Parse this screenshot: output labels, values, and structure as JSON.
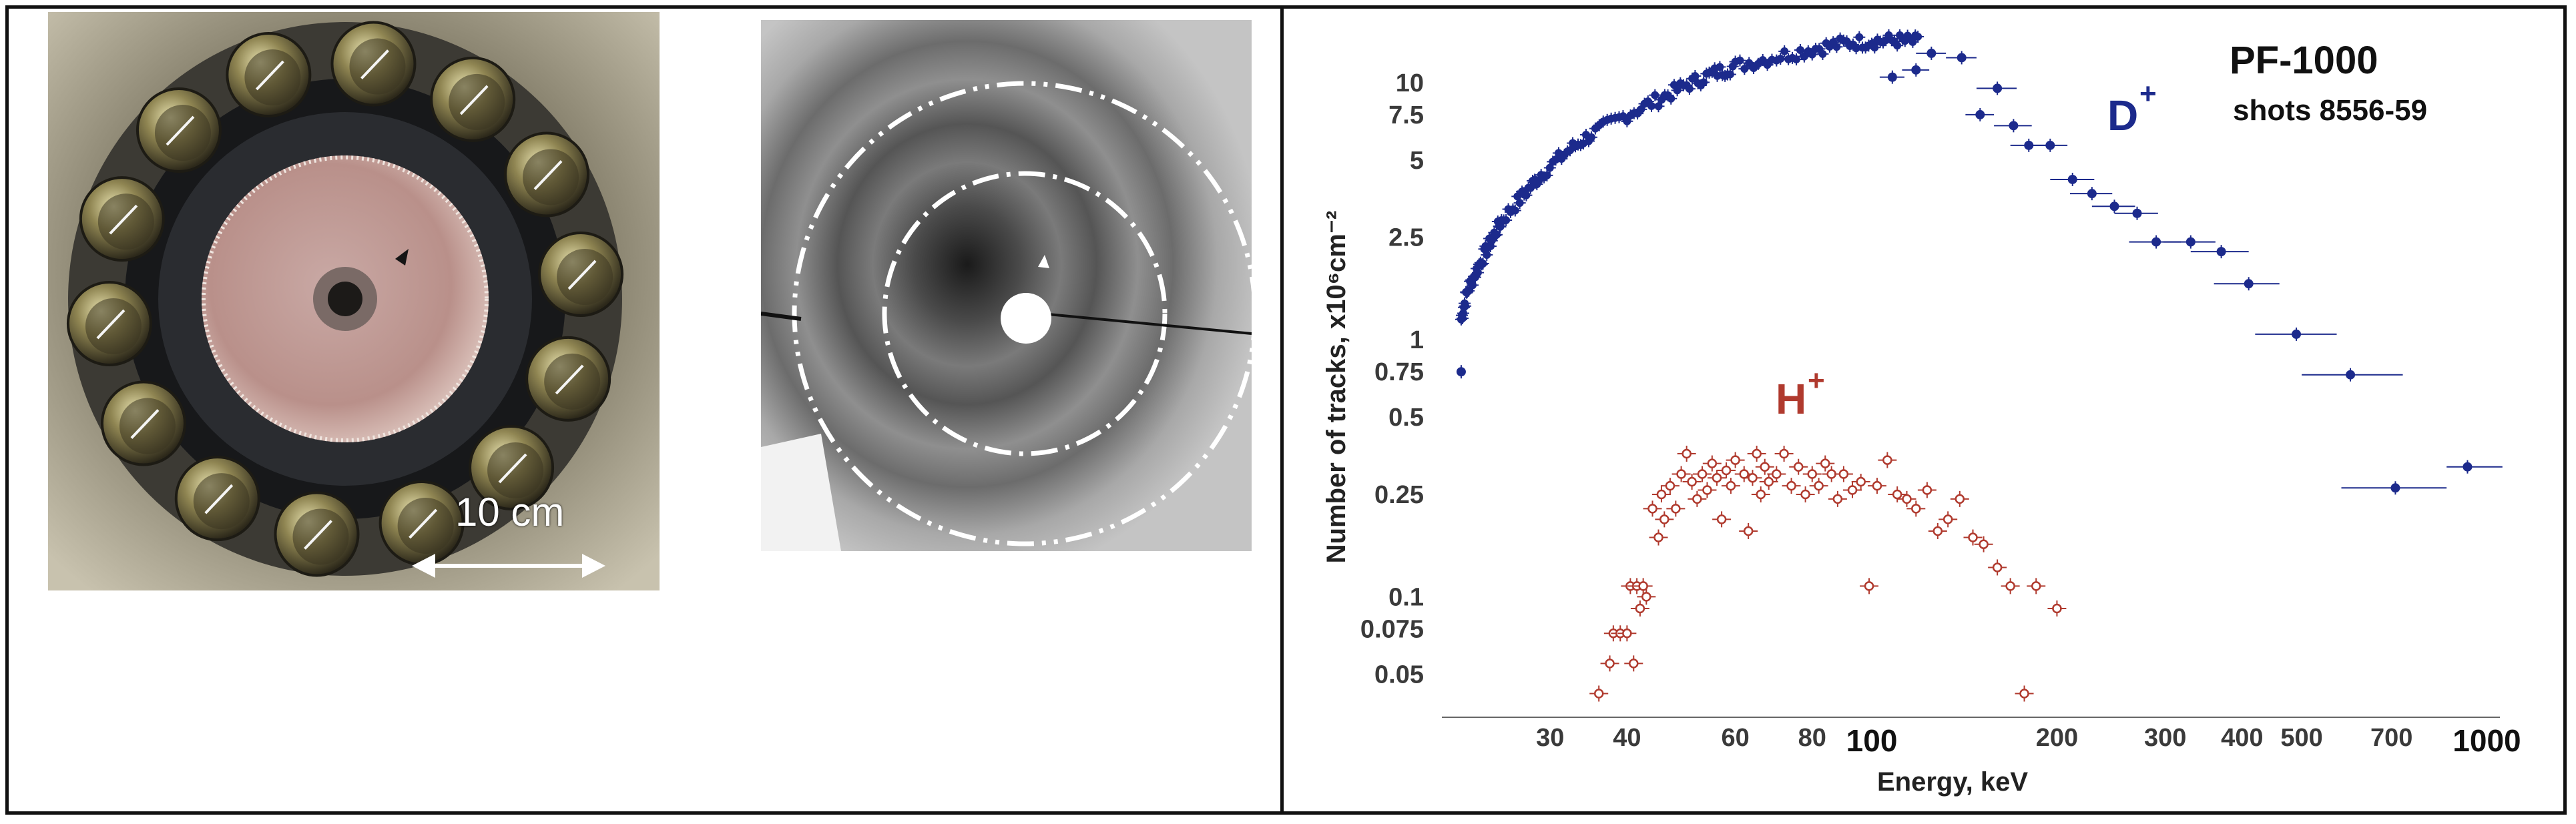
{
  "figure": {
    "left_photo": {
      "scale_label": "10 cm"
    },
    "middle_photo": {}
  },
  "chart_data": {
    "type": "scatter",
    "xscale": "log",
    "yscale": "log",
    "xlim": [
      20,
      1050
    ],
    "ylim": [
      0.035,
      17
    ],
    "xlabel": "Energy, keV",
    "ylabel": "Number of tracks, x10⁶cm⁻²",
    "x_ticks": [
      {
        "v": 30,
        "t": "30"
      },
      {
        "v": 40,
        "t": "40"
      },
      {
        "v": 60,
        "t": "60"
      },
      {
        "v": 80,
        "t": "80"
      },
      {
        "v": 100,
        "t": "100"
      },
      {
        "v": 200,
        "t": "200"
      },
      {
        "v": 300,
        "t": "300"
      },
      {
        "v": 400,
        "t": "400"
      },
      {
        "v": 500,
        "t": "500"
      },
      {
        "v": 700,
        "t": "700"
      },
      {
        "v": 1000,
        "t": "1000"
      }
    ],
    "y_ticks": [
      {
        "v": 10,
        "t": "10"
      },
      {
        "v": 7.5,
        "t": "7.5"
      },
      {
        "v": 5,
        "t": "5"
      },
      {
        "v": 2.5,
        "t": "2.5"
      },
      {
        "v": 1,
        "t": "1"
      },
      {
        "v": 0.75,
        "t": "0.75"
      },
      {
        "v": 0.5,
        "t": "0.5"
      },
      {
        "v": 0.25,
        "t": "0.25"
      },
      {
        "v": 0.1,
        "t": "0.1"
      },
      {
        "v": 0.075,
        "t": "0.075"
      },
      {
        "v": 0.05,
        "t": "0.05"
      }
    ],
    "annotations": {
      "title": "PF-1000",
      "subtitle": "shots 8556-59",
      "label_d": "D",
      "label_h": "H",
      "superscript": "+"
    },
    "series": [
      {
        "name": "D+",
        "color": "#1c2a8c",
        "marker": "filled",
        "dense_curve": [
          [
            21.5,
            1.2
          ],
          [
            22,
            1.55
          ],
          [
            23,
            1.95
          ],
          [
            24,
            2.4
          ],
          [
            25,
            2.9
          ],
          [
            27,
            3.6
          ],
          [
            29,
            4.4
          ],
          [
            32,
            5.4
          ],
          [
            35,
            6.3
          ],
          [
            40,
            7.5
          ],
          [
            45,
            8.6
          ],
          [
            50,
            9.8
          ],
          [
            55,
            10.8
          ],
          [
            60,
            11.6
          ],
          [
            70,
            12.6
          ],
          [
            80,
            13.5
          ],
          [
            90,
            14.2
          ],
          [
            100,
            14.5
          ],
          [
            110,
            14.6
          ],
          [
            120,
            14.4
          ]
        ],
        "points": [
          {
            "x": 21.5,
            "y": 0.75,
            "xlo": 21.3,
            "xhi": 21.7
          },
          {
            "x": 108,
            "y": 10.5,
            "xlo": 103,
            "xhi": 113
          },
          {
            "x": 118,
            "y": 11.2,
            "xlo": 112,
            "xhi": 124
          },
          {
            "x": 125,
            "y": 13.0,
            "xlo": 118,
            "xhi": 132
          },
          {
            "x": 140,
            "y": 12.5,
            "xlo": 132,
            "xhi": 148
          },
          {
            "x": 150,
            "y": 7.5,
            "xlo": 142,
            "xhi": 158
          },
          {
            "x": 160,
            "y": 9.5,
            "xlo": 148,
            "xhi": 172
          },
          {
            "x": 170,
            "y": 6.8,
            "xlo": 158,
            "xhi": 182
          },
          {
            "x": 180,
            "y": 5.7,
            "xlo": 168,
            "xhi": 192
          },
          {
            "x": 195,
            "y": 5.7,
            "xlo": 182,
            "xhi": 208
          },
          {
            "x": 212,
            "y": 4.2,
            "xlo": 195,
            "xhi": 230
          },
          {
            "x": 228,
            "y": 3.7,
            "xlo": 210,
            "xhi": 246
          },
          {
            "x": 248,
            "y": 3.3,
            "xlo": 228,
            "xhi": 268
          },
          {
            "x": 270,
            "y": 3.1,
            "xlo": 248,
            "xhi": 292
          },
          {
            "x": 290,
            "y": 2.4,
            "xlo": 262,
            "xhi": 318
          },
          {
            "x": 330,
            "y": 2.4,
            "xlo": 298,
            "xhi": 362
          },
          {
            "x": 370,
            "y": 2.2,
            "xlo": 330,
            "xhi": 410
          },
          {
            "x": 410,
            "y": 1.65,
            "xlo": 360,
            "xhi": 460
          },
          {
            "x": 490,
            "y": 1.05,
            "xlo": 420,
            "xhi": 570
          },
          {
            "x": 600,
            "y": 0.73,
            "xlo": 500,
            "xhi": 730
          },
          {
            "x": 710,
            "y": 0.265,
            "xlo": 580,
            "xhi": 860
          },
          {
            "x": 930,
            "y": 0.32,
            "xlo": 860,
            "xhi": 1060
          }
        ]
      },
      {
        "name": "H+",
        "color": "#b03a2e",
        "marker": "open",
        "points": [
          {
            "x": 36,
            "y": 0.042
          },
          {
            "x": 37.5,
            "y": 0.055
          },
          {
            "x": 38,
            "y": 0.072
          },
          {
            "x": 39,
            "y": 0.072
          },
          {
            "x": 40,
            "y": 0.072
          },
          {
            "x": 40.5,
            "y": 0.11
          },
          {
            "x": 41,
            "y": 0.055
          },
          {
            "x": 41.5,
            "y": 0.11
          },
          {
            "x": 42,
            "y": 0.09
          },
          {
            "x": 42.5,
            "y": 0.11
          },
          {
            "x": 43,
            "y": 0.1
          },
          {
            "x": 44,
            "y": 0.22
          },
          {
            "x": 45,
            "y": 0.17
          },
          {
            "x": 45.5,
            "y": 0.25
          },
          {
            "x": 46,
            "y": 0.2
          },
          {
            "x": 47,
            "y": 0.27
          },
          {
            "x": 48,
            "y": 0.22
          },
          {
            "x": 49,
            "y": 0.3
          },
          {
            "x": 50,
            "y": 0.36
          },
          {
            "x": 51,
            "y": 0.28
          },
          {
            "x": 52,
            "y": 0.24
          },
          {
            "x": 53,
            "y": 0.3
          },
          {
            "x": 54,
            "y": 0.26
          },
          {
            "x": 55,
            "y": 0.33
          },
          {
            "x": 56,
            "y": 0.29
          },
          {
            "x": 57,
            "y": 0.2
          },
          {
            "x": 58,
            "y": 0.31
          },
          {
            "x": 59,
            "y": 0.27
          },
          {
            "x": 60,
            "y": 0.34
          },
          {
            "x": 62,
            "y": 0.3
          },
          {
            "x": 63,
            "y": 0.18
          },
          {
            "x": 64,
            "y": 0.29
          },
          {
            "x": 65,
            "y": 0.36
          },
          {
            "x": 66,
            "y": 0.25
          },
          {
            "x": 67,
            "y": 0.32
          },
          {
            "x": 68,
            "y": 0.28
          },
          {
            "x": 70,
            "y": 0.3
          },
          {
            "x": 72,
            "y": 0.36
          },
          {
            "x": 74,
            "y": 0.27
          },
          {
            "x": 76,
            "y": 0.32
          },
          {
            "x": 78,
            "y": 0.25
          },
          {
            "x": 80,
            "y": 0.3
          },
          {
            "x": 82,
            "y": 0.27
          },
          {
            "x": 84,
            "y": 0.33
          },
          {
            "x": 86,
            "y": 0.3
          },
          {
            "x": 88,
            "y": 0.24
          },
          {
            "x": 90,
            "y": 0.3
          },
          {
            "x": 93,
            "y": 0.26
          },
          {
            "x": 96,
            "y": 0.28
          },
          {
            "x": 99,
            "y": 0.11
          },
          {
            "x": 102,
            "y": 0.27
          },
          {
            "x": 106,
            "y": 0.34
          },
          {
            "x": 110,
            "y": 0.25
          },
          {
            "x": 114,
            "y": 0.24
          },
          {
            "x": 118,
            "y": 0.22
          },
          {
            "x": 123,
            "y": 0.26
          },
          {
            "x": 128,
            "y": 0.18
          },
          {
            "x": 133,
            "y": 0.2
          },
          {
            "x": 139,
            "y": 0.24
          },
          {
            "x": 146,
            "y": 0.17
          },
          {
            "x": 152,
            "y": 0.16
          },
          {
            "x": 160,
            "y": 0.13
          },
          {
            "x": 168,
            "y": 0.11
          },
          {
            "x": 177,
            "y": 0.042
          },
          {
            "x": 185,
            "y": 0.11
          },
          {
            "x": 200,
            "y": 0.09
          }
        ]
      }
    ]
  }
}
